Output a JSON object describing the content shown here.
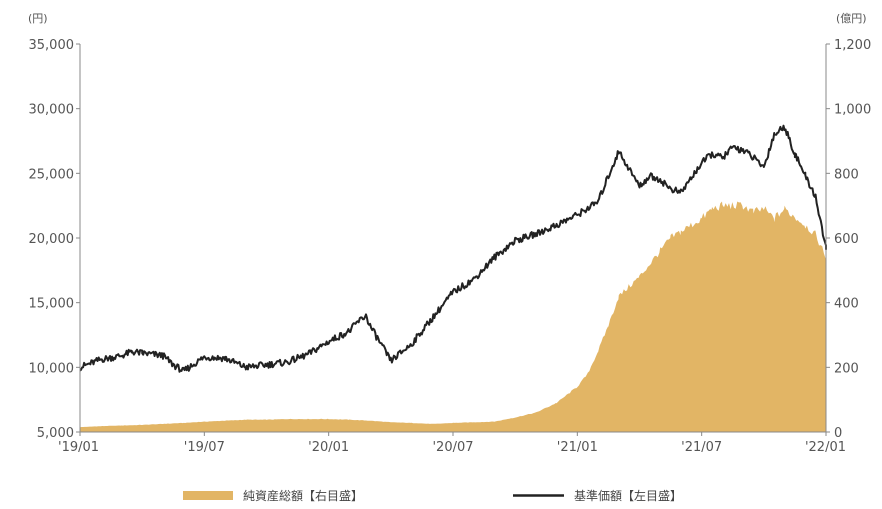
{
  "chart_data": {
    "type": "area+line",
    "title": "",
    "left_axis": {
      "unit": "(円)",
      "range": [
        5000,
        35000
      ],
      "ticks": [
        "5,000",
        "10,000",
        "15,000",
        "20,000",
        "25,000",
        "30,000",
        "35,000"
      ]
    },
    "right_axis": {
      "unit": "(億円)",
      "range": [
        0,
        1200
      ],
      "ticks": [
        "0",
        "200",
        "400",
        "600",
        "800",
        "1,000",
        "1,200"
      ]
    },
    "x_axis": {
      "ticks": [
        "'19/01",
        "'19/07",
        "'20/01",
        "'20/07",
        "'21/01",
        "'21/07",
        "'22/01"
      ],
      "range": [
        0,
        36
      ]
    },
    "grid": false,
    "legend_position": "bottom",
    "series": [
      {
        "name": "純資産総額【右目盛】",
        "kind": "area",
        "axis": "right",
        "color": "#e2b565",
        "x": [
          0,
          1,
          2,
          3,
          4,
          5,
          6,
          7,
          8,
          9,
          10,
          11,
          12,
          13,
          14,
          15,
          16,
          17,
          18,
          19,
          20,
          21,
          22,
          23,
          24,
          24.5,
          25,
          25.5,
          26,
          27,
          28,
          28.5,
          29,
          30,
          30.5,
          31,
          32,
          32.5,
          33,
          33.5,
          34,
          35,
          35.5,
          36
        ],
        "values": [
          15,
          18,
          20,
          22,
          25,
          28,
          32,
          35,
          38,
          38,
          40,
          40,
          40,
          38,
          35,
          30,
          28,
          25,
          28,
          30,
          32,
          45,
          60,
          90,
          140,
          180,
          250,
          330,
          420,
          480,
          560,
          600,
          620,
          660,
          690,
          700,
          700,
          680,
          690,
          660,
          690,
          640,
          610,
          540
        ]
      },
      {
        "name": "基準価額【左目盛】",
        "kind": "line",
        "axis": "left",
        "color": "#222222",
        "x": [
          0,
          1,
          2,
          2.5,
          3,
          4,
          4.5,
          5,
          6,
          7,
          8,
          9,
          10,
          11,
          11.5,
          12,
          13,
          13.4,
          13.8,
          14,
          15,
          16,
          17,
          17.5,
          18,
          19,
          20,
          21,
          22,
          23,
          24,
          24.5,
          25,
          25.5,
          26,
          27,
          27.5,
          28,
          28.5,
          29,
          30,
          30.5,
          31,
          31.5,
          32,
          32.5,
          33,
          33.5,
          34,
          34.5,
          35,
          35.5,
          36
        ],
        "values": [
          10000,
          10600,
          10900,
          11200,
          11100,
          10900,
          10200,
          9700,
          10800,
          10700,
          10000,
          10200,
          10400,
          11000,
          11500,
          12000,
          12800,
          13500,
          14000,
          13200,
          10500,
          11800,
          13800,
          14800,
          15800,
          16800,
          18500,
          19800,
          20300,
          21000,
          21800,
          22300,
          22800,
          24800,
          26700,
          24000,
          24800,
          24500,
          23800,
          23500,
          25800,
          26500,
          26200,
          27000,
          26800,
          26200,
          25500,
          28000,
          28600,
          26500,
          24800,
          23200,
          19200
        ]
      }
    ]
  }
}
